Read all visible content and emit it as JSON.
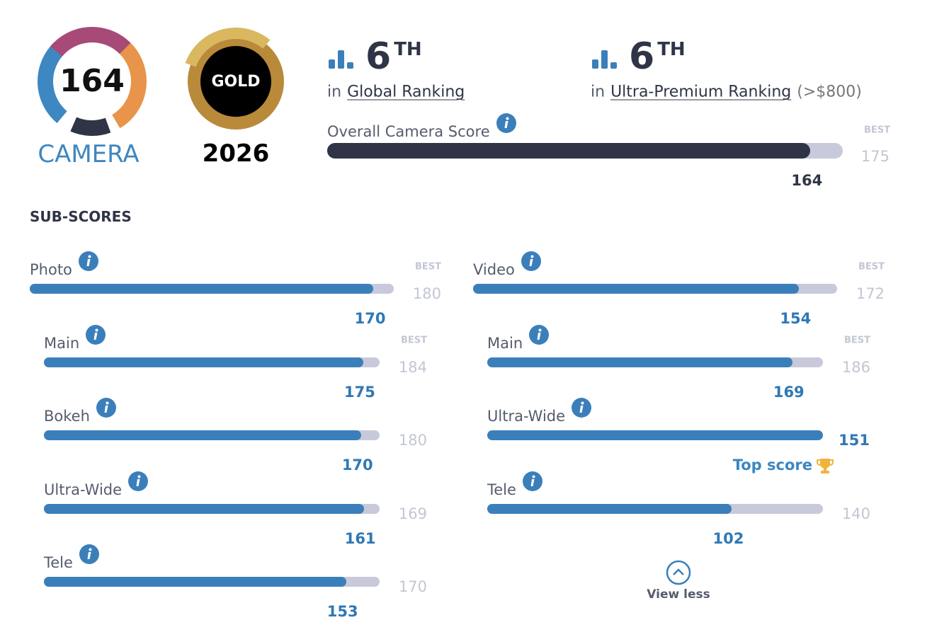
{
  "badges": {
    "camera": {
      "score": 164,
      "label": "CAMERA"
    },
    "gold": {
      "label": "GOLD",
      "year": "2026"
    }
  },
  "rankings": [
    {
      "rank": 6,
      "suffix": "TH",
      "prefix": "in",
      "link": "Global Ranking"
    },
    {
      "rank": 6,
      "suffix": "TH",
      "prefix": "in",
      "link": "Ultra-Premium Ranking",
      "note": "(>$800)"
    }
  ],
  "overall": {
    "label": "Overall Camera Score",
    "best_label": "BEST",
    "best": 175,
    "score": 164
  },
  "subscores": {
    "title": "SUB-SCORES",
    "columns": [
      {
        "items": [
          {
            "name": "Photo",
            "score": 170,
            "best": 180,
            "best_label": "BEST",
            "level": 0
          },
          {
            "name": "Main",
            "score": 175,
            "best": 184,
            "best_label": "BEST",
            "level": 1
          },
          {
            "name": "Bokeh",
            "score": 170,
            "best": 180,
            "level": 1
          },
          {
            "name": "Ultra-Wide",
            "score": 161,
            "best": 169,
            "level": 1
          },
          {
            "name": "Tele",
            "score": 153,
            "best": 170,
            "level": 1
          }
        ]
      },
      {
        "items": [
          {
            "name": "Video",
            "score": 154,
            "best": 172,
            "best_label": "BEST",
            "level": 0
          },
          {
            "name": "Main",
            "score": 169,
            "best": 186,
            "best_label": "BEST",
            "level": 1
          },
          {
            "name": "Ultra-Wide",
            "score": 151,
            "top_label": "Top score",
            "level": 1
          },
          {
            "name": "Tele",
            "score": 102,
            "best": 140,
            "level": 1
          }
        ]
      }
    ]
  },
  "view_less": "View less"
}
